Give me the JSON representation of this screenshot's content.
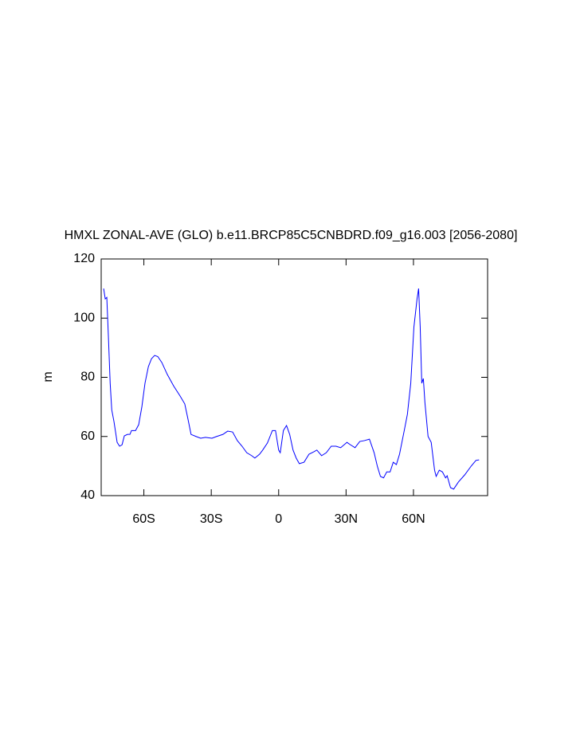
{
  "chart_data": {
    "type": "line",
    "title": "HMXL ZONAL-AVE (GLO) b.e11.BRCP85C5CNBDRD.f09_g16.003 [2056-2080]",
    "ylabel": "m",
    "xlim": [
      -79,
      93
    ],
    "ylim": [
      40,
      120
    ],
    "xticks": [
      {
        "value": -60,
        "label": "60S"
      },
      {
        "value": -30,
        "label": "30S"
      },
      0,
      {
        "value": 30,
        "label": "30N"
      },
      {
        "value": 60,
        "label": "60N"
      }
    ],
    "yticks": [
      40,
      60,
      80,
      100,
      120
    ],
    "x": [
      -77.9,
      -77.2,
      -76.5,
      -75.8,
      -75,
      -74.3,
      -73.3,
      -71.9,
      -70.8,
      -69.7,
      -68.7,
      -67.3,
      -66.2,
      -65.5,
      -63.7,
      -62.3,
      -60.9,
      -59.5,
      -58,
      -56.6,
      -55.2,
      -53.8,
      -52,
      -49.6,
      -46.7,
      -43.9,
      -41.8,
      -40.4,
      -39,
      -36.8,
      -34.7,
      -32.6,
      -29.7,
      -27.6,
      -24.8,
      -22.7,
      -20.5,
      -18.4,
      -16.3,
      -14.2,
      -12,
      -10.6,
      -8.5,
      -7.1,
      -5,
      -2.8,
      -1.4,
      0,
      0.7,
      2.1,
      3.5,
      4.9,
      6.4,
      7.8,
      9.2,
      11.3,
      13.5,
      15.6,
      17,
      19.1,
      21.2,
      23.4,
      25.5,
      27.6,
      30.4,
      31.9,
      34,
      36.1,
      38.2,
      40.4,
      42.5,
      43.9,
      45.3,
      46.7,
      48.1,
      49.6,
      51,
      52.4,
      53.8,
      55.9,
      57.3,
      58.8,
      60.2,
      61.6,
      62.3,
      63,
      63.7,
      64.4,
      65.1,
      66.5,
      67.9,
      69.4,
      70.1,
      71.5,
      72.9,
      74.3,
      75,
      76.5,
      77.9,
      80,
      82.8,
      85.7,
      87.8,
      89.2
    ],
    "series": [
      {
        "name": "HMXL",
        "color": "#0000ff",
        "values": [
          110,
          106.5,
          107,
          94,
          78,
          69,
          65,
          58,
          56.7,
          57.2,
          60.2,
          60.7,
          60.7,
          62,
          62,
          64,
          70,
          78,
          83.6,
          86.3,
          87.4,
          87,
          85,
          81,
          77,
          73.7,
          71,
          66,
          60.7,
          60,
          59.4,
          59.7,
          59.4,
          60,
          60.7,
          61.8,
          61.5,
          58.6,
          56.7,
          54.5,
          53.5,
          52.7,
          54,
          55.4,
          57.8,
          62,
          62,
          55.4,
          54.5,
          62,
          63.7,
          60.7,
          55.4,
          52.7,
          50.8,
          51.3,
          54,
          54.8,
          55.4,
          53.5,
          54.5,
          56.7,
          56.7,
          56.2,
          58,
          57.2,
          56.2,
          58.3,
          58.6,
          59.1,
          54.5,
          50,
          46.5,
          46,
          48,
          48,
          51.3,
          50.5,
          54,
          62,
          67.5,
          78,
          97,
          106.5,
          110,
          97,
          78,
          79.6,
          71.5,
          60,
          58,
          48.6,
          46.5,
          48.6,
          48,
          46,
          46.7,
          42.7,
          42.2,
          44.6,
          47,
          50,
          51.9,
          52.1
        ]
      }
    ]
  }
}
